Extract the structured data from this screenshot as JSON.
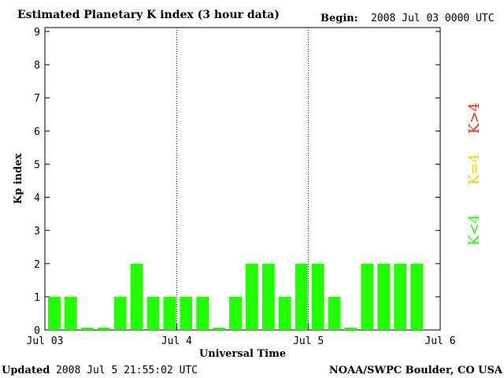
{
  "header": {
    "title": "Estimated Planetary K index (3 hour data)",
    "begin_label": "Begin:",
    "begin_value": "2008 Jul 03 0000 UTC"
  },
  "footer": {
    "updated_label": "Updated",
    "updated_value": "2008 Jul  5 21:55:02 UTC",
    "source": "NOAA/SWPC Boulder, CO USA"
  },
  "legend": [
    {
      "label": "K>4",
      "color": "#ff2a00"
    },
    {
      "label": "K=4",
      "color": "#ffd000"
    },
    {
      "label": "K<4",
      "color": "#22ff00"
    }
  ],
  "chart_data": {
    "type": "bar",
    "title": "Estimated Planetary K index (3 hour data)",
    "xlabel": "Universal Time",
    "ylabel": "Kp index",
    "ylim": [
      0,
      9
    ],
    "yticks": [
      0,
      1,
      2,
      3,
      4,
      5,
      6,
      7,
      8,
      9
    ],
    "x_tick_labels": [
      "Jul 03",
      "Jul 4",
      "Jul 5",
      "Jul 6"
    ],
    "day_dividers": [
      "Jul 4",
      "Jul 5"
    ],
    "values": [
      1,
      1,
      0,
      0,
      1,
      2,
      1,
      1,
      1,
      1,
      0,
      1,
      2,
      2,
      1,
      2,
      2,
      1,
      0,
      2,
      2,
      2,
      2
    ],
    "bar_color": "#22ff00",
    "grid": false
  }
}
